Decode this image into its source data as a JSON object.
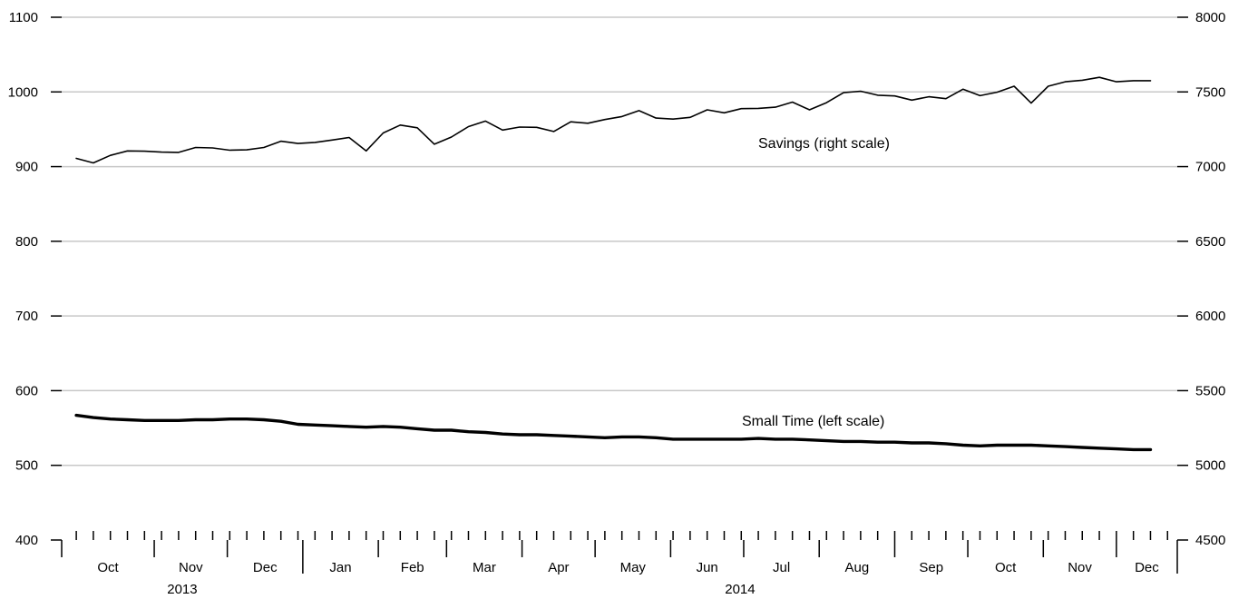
{
  "chart_data": {
    "type": "line",
    "title": "",
    "xlabel": "",
    "ylabel": "",
    "grid": true,
    "y_left": {
      "ylim": [
        400,
        1100
      ],
      "ticks": [
        "1100",
        "1000",
        "900",
        "800",
        "700",
        "600",
        "500",
        "400"
      ]
    },
    "y_right": {
      "ylim": [
        4500,
        8000
      ],
      "ticks": [
        "8000",
        "7500",
        "7000",
        "6500",
        "6000",
        "5500",
        "5000",
        "4500"
      ]
    },
    "x_months": [
      "Oct",
      "Nov",
      "Dec",
      "Jan",
      "Feb",
      "Mar",
      "Apr",
      "May",
      "Jun",
      "Jul",
      "Aug",
      "Sep",
      "Oct",
      "Nov",
      "Dec"
    ],
    "x_years": [
      "2013",
      "2014"
    ],
    "series": [
      {
        "name": "Savings (right scale)",
        "axis": "right",
        "x": [
          "2013-09-30",
          "2013-10-07",
          "2013-10-14",
          "2013-10-21",
          "2013-10-28",
          "2013-11-04",
          "2013-11-11",
          "2013-11-18",
          "2013-11-25",
          "2013-12-02",
          "2013-12-09",
          "2013-12-16",
          "2013-12-23",
          "2013-12-30",
          "2014-01-06",
          "2014-01-13",
          "2014-01-20",
          "2014-01-27",
          "2014-02-03",
          "2014-02-10",
          "2014-02-17",
          "2014-02-24",
          "2014-03-03",
          "2014-03-10",
          "2014-03-17",
          "2014-03-24",
          "2014-03-31",
          "2014-04-07",
          "2014-04-14",
          "2014-04-21",
          "2014-04-28",
          "2014-05-05",
          "2014-05-12",
          "2014-05-19",
          "2014-05-26",
          "2014-06-02",
          "2014-06-09",
          "2014-06-16",
          "2014-06-23",
          "2014-06-30",
          "2014-07-07",
          "2014-07-14",
          "2014-07-21",
          "2014-07-28",
          "2014-08-04",
          "2014-08-11",
          "2014-08-18",
          "2014-08-25",
          "2014-09-01",
          "2014-09-08",
          "2014-09-15",
          "2014-09-22",
          "2014-09-29",
          "2014-10-06",
          "2014-10-13",
          "2014-10-20",
          "2014-10-27",
          "2014-11-03",
          "2014-11-10",
          "2014-11-17",
          "2014-11-24",
          "2014-12-01",
          "2014-12-08",
          "2014-12-15"
        ],
        "values": [
          7055,
          7025,
          7075,
          7105,
          7103,
          7097,
          7095,
          7128,
          7125,
          7110,
          7112,
          7128,
          7170,
          7155,
          7162,
          7178,
          7195,
          7105,
          7225,
          7278,
          7260,
          7150,
          7198,
          7268,
          7305,
          7245,
          7265,
          7263,
          7235,
          7300,
          7290,
          7315,
          7335,
          7375,
          7325,
          7318,
          7330,
          7380,
          7360,
          7388,
          7390,
          7398,
          7432,
          7380,
          7428,
          7495,
          7505,
          7478,
          7473,
          7445,
          7468,
          7455,
          7518,
          7475,
          7498,
          7538,
          7425,
          7538,
          7568,
          7578,
          7598,
          7568,
          7575,
          7575
        ]
      },
      {
        "name": "Small Time (left scale)",
        "axis": "left",
        "x": [
          "2013-09-30",
          "2013-10-07",
          "2013-10-14",
          "2013-10-21",
          "2013-10-28",
          "2013-11-04",
          "2013-11-11",
          "2013-11-18",
          "2013-11-25",
          "2013-12-02",
          "2013-12-09",
          "2013-12-16",
          "2013-12-23",
          "2013-12-30",
          "2014-01-06",
          "2014-01-13",
          "2014-01-20",
          "2014-01-27",
          "2014-02-03",
          "2014-02-10",
          "2014-02-17",
          "2014-02-24",
          "2014-03-03",
          "2014-03-10",
          "2014-03-17",
          "2014-03-24",
          "2014-03-31",
          "2014-04-07",
          "2014-04-14",
          "2014-04-21",
          "2014-04-28",
          "2014-05-05",
          "2014-05-12",
          "2014-05-19",
          "2014-05-26",
          "2014-06-02",
          "2014-06-09",
          "2014-06-16",
          "2014-06-23",
          "2014-06-30",
          "2014-07-07",
          "2014-07-14",
          "2014-07-21",
          "2014-07-28",
          "2014-08-04",
          "2014-08-11",
          "2014-08-18",
          "2014-08-25",
          "2014-09-01",
          "2014-09-08",
          "2014-09-15",
          "2014-09-22",
          "2014-09-29",
          "2014-10-06",
          "2014-10-13",
          "2014-10-20",
          "2014-10-27",
          "2014-11-03",
          "2014-11-10",
          "2014-11-17",
          "2014-11-24",
          "2014-12-01",
          "2014-12-08",
          "2014-12-15"
        ],
        "values": [
          567,
          564,
          562,
          561,
          560,
          560,
          560,
          561,
          561,
          562,
          562,
          561,
          559,
          555,
          554,
          553,
          552,
          551,
          552,
          551,
          549,
          547,
          547,
          545,
          544,
          542,
          541,
          541,
          540,
          539,
          538,
          537,
          538,
          538,
          537,
          535,
          535,
          535,
          535,
          535,
          536,
          535,
          535,
          534,
          533,
          532,
          532,
          531,
          531,
          530,
          530,
          529,
          527,
          526,
          527,
          527,
          527,
          526,
          525,
          524,
          523,
          522,
          521,
          521
        ]
      }
    ],
    "annotations": [
      "Savings (right scale)",
      "Small Time (left scale)"
    ]
  }
}
